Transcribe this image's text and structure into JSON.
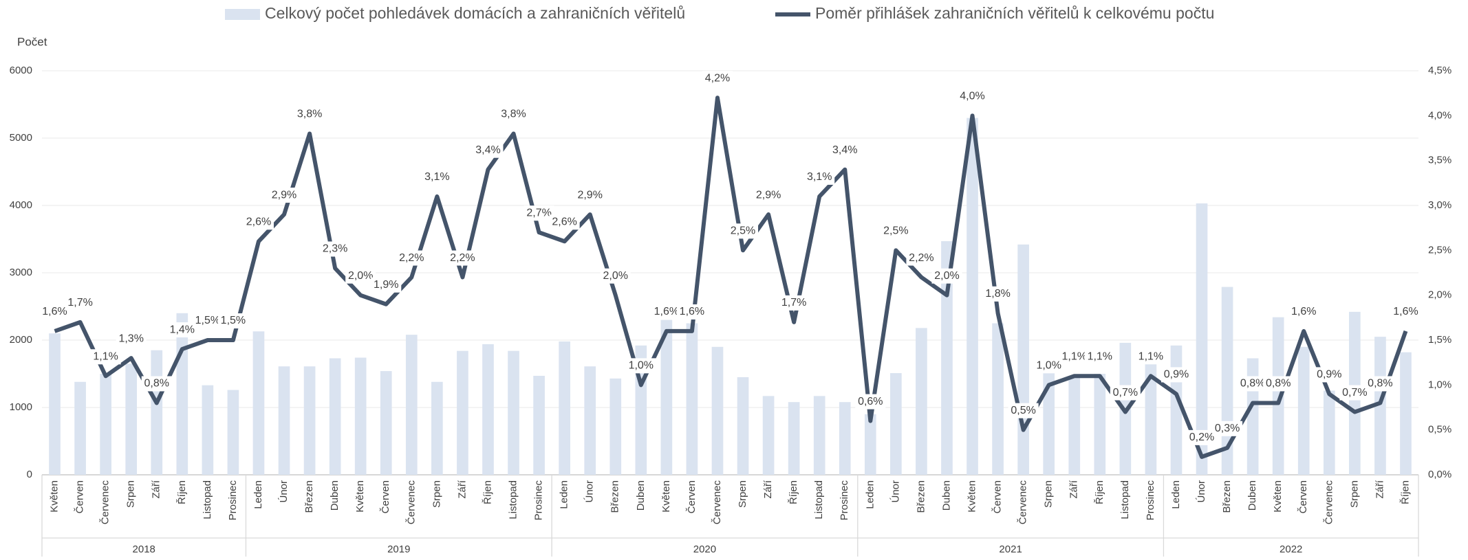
{
  "chart_data": {
    "type": "bar+line",
    "y_label": "Počet",
    "groups": [
      {
        "label": "2018",
        "categories": [
          "Květen",
          "Červen",
          "Červenec",
          "Srpen",
          "Září",
          "Říjen",
          "Listopad",
          "Prosinec"
        ]
      },
      {
        "label": "2019",
        "categories": [
          "Leden",
          "Únor",
          "Březen",
          "Duben",
          "Květen",
          "Červen",
          "Červenec",
          "Srpen",
          "Září",
          "Říjen",
          "Listopad",
          "Prosinec"
        ]
      },
      {
        "label": "2020",
        "categories": [
          "Leden",
          "Únor",
          "Březen",
          "Duben",
          "Květen",
          "Červen",
          "Červenec",
          "Srpen",
          "Září",
          "Říjen",
          "Listopad",
          "Prosinec"
        ]
      },
      {
        "label": "2021",
        "categories": [
          "Leden",
          "Únor",
          "Březen",
          "Duben",
          "Květen",
          "Červen",
          "Červenec",
          "Srpen",
          "Září",
          "Říjen",
          "Listopad",
          "Prosinec"
        ]
      },
      {
        "label": "2022",
        "categories": [
          "Leden",
          "Únor",
          "Březen",
          "Duben",
          "Květen",
          "Červen",
          "Červenec",
          "Srpen",
          "Září",
          "Říjen"
        ]
      }
    ],
    "series": [
      {
        "name": "Celkový počet pohledávek domácích a zahraničních věřitelů",
        "type": "bar",
        "color": "#dae3f0",
        "values": [
          2100,
          1380,
          1500,
          1650,
          1850,
          2400,
          1330,
          1260,
          2130,
          1610,
          1610,
          1730,
          1740,
          1540,
          2080,
          1380,
          1840,
          1940,
          1840,
          1470,
          1980,
          1610,
          1430,
          1920,
          2300,
          2250,
          1900,
          1450,
          1170,
          1080,
          1170,
          1080,
          900,
          1510,
          2180,
          3470,
          5300,
          2250,
          3420,
          1530,
          1450,
          1500,
          1960,
          1650,
          1920,
          4030,
          2790,
          1730,
          2340,
          1900,
          1250,
          2420,
          2050,
          1820
        ]
      },
      {
        "name": "Poměr přihlášek zahraničních věřitelů k celkovému počtu",
        "type": "line",
        "axis": "y2",
        "color": "#44546a",
        "values": [
          1.6,
          1.7,
          1.1,
          1.3,
          0.8,
          1.4,
          1.5,
          1.5,
          2.6,
          2.9,
          3.8,
          2.3,
          2.0,
          1.9,
          2.2,
          3.1,
          2.2,
          3.4,
          3.8,
          2.7,
          2.6,
          2.9,
          2.0,
          1.0,
          1.6,
          1.6,
          4.2,
          2.5,
          2.9,
          1.7,
          3.1,
          3.4,
          0.6,
          2.5,
          2.2,
          2.0,
          4.0,
          1.8,
          0.5,
          1.0,
          1.1,
          1.1,
          0.7,
          1.1,
          0.9,
          0.2,
          0.3,
          0.8,
          0.8,
          1.6,
          0.9,
          0.7,
          0.8,
          1.6
        ],
        "value_labels": [
          "1,6%",
          "1,7%",
          "1,1%",
          "1,3%",
          "0,8%",
          "1,4%",
          "1,5%",
          "1,5%",
          "2,6%",
          "2,9%",
          "3,8%",
          "2,3%",
          "2,0%",
          "1,9%",
          "2,2%",
          "3,1%",
          "2,2%",
          "3,4%",
          "3,8%",
          "2,7%",
          "2,6%",
          "2,9%",
          "2,0%",
          "1,0%",
          "1,6%",
          "1,6%",
          "4,2%",
          "2,5%",
          "2,9%",
          "1,7%",
          "3,1%",
          "3,4%",
          "0,6%",
          "2,5%",
          "2,2%",
          "2,0%",
          "4,0%",
          "1,8%",
          "0,5%",
          "1,0%",
          "1,1%",
          "1,1%",
          "0,7%",
          "1,1%",
          "0,9%",
          "0,2%",
          "0,3%",
          "0,8%",
          "0,8%",
          "1,6%",
          "0,9%",
          "0,7%",
          "0,8%",
          "1,6%"
        ]
      }
    ],
    "ylim": [
      0,
      6000
    ],
    "yticks": [
      0,
      1000,
      2000,
      3000,
      4000,
      5000,
      6000
    ],
    "y2lim": [
      0,
      4.5
    ],
    "y2ticks": [
      {
        "value": 0,
        "label": "0,0%"
      },
      {
        "value": 0.5,
        "label": "0,5%"
      },
      {
        "value": 1,
        "label": "1,0%"
      },
      {
        "value": 1.5,
        "label": "1,5%"
      },
      {
        "value": 2,
        "label": "2,0%"
      },
      {
        "value": 2.5,
        "label": "2,5%"
      },
      {
        "value": 3,
        "label": "3,0%"
      },
      {
        "value": 3.5,
        "label": "3,5%"
      },
      {
        "value": 4,
        "label": "4,0%"
      },
      {
        "value": 4.5,
        "label": "4,5%"
      }
    ],
    "grid": true,
    "legend": "top"
  }
}
